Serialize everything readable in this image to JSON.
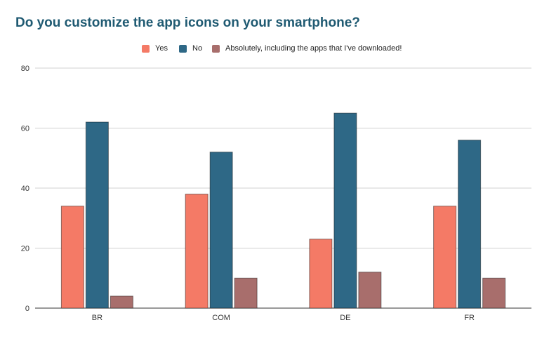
{
  "chart_data": {
    "type": "bar",
    "title": "Do you customize the app icons on your smartphone?",
    "xlabel": "",
    "ylabel": "",
    "ylim": [
      0,
      80
    ],
    "yticks": [
      0,
      20,
      40,
      60,
      80
    ],
    "grid": true,
    "legend_position": "top-center",
    "categories": [
      "BR",
      "COM",
      "DE",
      "FR"
    ],
    "series": [
      {
        "name": "Yes",
        "color": "#f47a66",
        "values": [
          34,
          38,
          23,
          34
        ]
      },
      {
        "name": "No",
        "color": "#2e6886",
        "values": [
          62,
          52,
          65,
          56
        ]
      },
      {
        "name": "Absolutely, including the apps that I've downloaded!",
        "color": "#a86e6c",
        "values": [
          4,
          10,
          12,
          10
        ]
      }
    ]
  }
}
